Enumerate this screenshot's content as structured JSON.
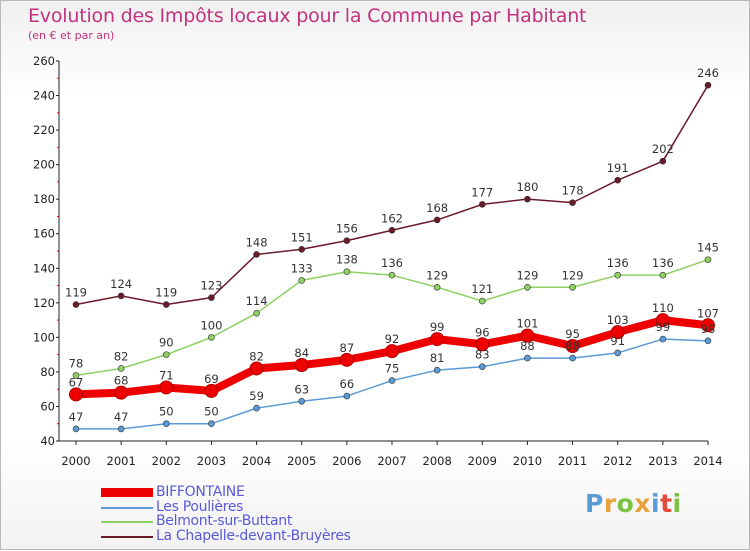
{
  "title": "Evolution des Impôts locaux pour la Commune par Habitant",
  "subtitle": "(en € et par an)",
  "logo": {
    "text": "Proxiti",
    "colors": [
      "#5b9bd5",
      "#e9a23b",
      "#7cc242",
      "#e9a23b",
      "#5b9bd5",
      "#e44b3c",
      "#7cc242"
    ]
  },
  "chart_data": {
    "type": "line",
    "title": "Evolution des Impôts locaux pour la Commune par Habitant",
    "subtitle": "(en € et par an)",
    "xlabel": "",
    "ylabel": "",
    "x": [
      2000,
      2001,
      2002,
      2003,
      2004,
      2005,
      2006,
      2007,
      2008,
      2009,
      2010,
      2011,
      2012,
      2013,
      2014
    ],
    "ylim": [
      40,
      260
    ],
    "yticks": [
      40,
      60,
      80,
      100,
      120,
      140,
      160,
      180,
      200,
      220,
      240,
      260
    ],
    "grid": false,
    "legend_position": "bottom-left",
    "series": [
      {
        "name": "La Chapelle-devant-Bruyères",
        "color": "#6b1a2a",
        "values": [
          119,
          124,
          119,
          123,
          148,
          151,
          156,
          162,
          168,
          177,
          180,
          178,
          191,
          202,
          246
        ],
        "labels": [
          "119",
          "124",
          "119",
          "123",
          "148",
          "151",
          "156",
          "162",
          "168",
          "177",
          "180",
          "178",
          "191",
          "202",
          "246"
        ]
      },
      {
        "name": "Belmont-sur-Buttant",
        "color": "#8fd063",
        "values": [
          78,
          82,
          90,
          100,
          114,
          133,
          138,
          136,
          129,
          121,
          129,
          129,
          136,
          136,
          145
        ],
        "labels": [
          "78",
          "82",
          "90",
          "100",
          "114",
          "133",
          "138",
          "136",
          "129",
          "121",
          "129",
          "129",
          "136",
          "136",
          "145"
        ]
      },
      {
        "name": "Les Poulières",
        "color": "#5b9bd5",
        "values": [
          47,
          47,
          50,
          50,
          59,
          63,
          66,
          75,
          81,
          83,
          88,
          88,
          91,
          99,
          98
        ],
        "labels": [
          "47",
          "47",
          "50",
          "50",
          "59",
          "63",
          "66",
          "75",
          "81",
          "83",
          "88",
          "88",
          "91",
          "99",
          "98"
        ]
      },
      {
        "name": "BIFFONTAINE",
        "color": "#ee0000",
        "values": [
          67,
          68,
          71,
          69,
          82,
          84,
          87,
          92,
          99,
          96,
          101,
          95,
          103,
          110,
          107
        ],
        "labels": [
          "67",
          "68",
          "71",
          "69",
          "82",
          "84",
          "87",
          "92",
          "99",
          "96",
          "101",
          "95",
          "103",
          "110",
          "107"
        ]
      }
    ]
  },
  "legend": [
    {
      "label": "BIFFONTAINE",
      "color": "#ee0000"
    },
    {
      "label": "Les Poulières",
      "color": "#5b9bd5"
    },
    {
      "label": "Belmont-sur-Buttant",
      "color": "#8fd063"
    },
    {
      "label": "La Chapelle-devant-Bruyères",
      "color": "#6b1a2a"
    }
  ]
}
